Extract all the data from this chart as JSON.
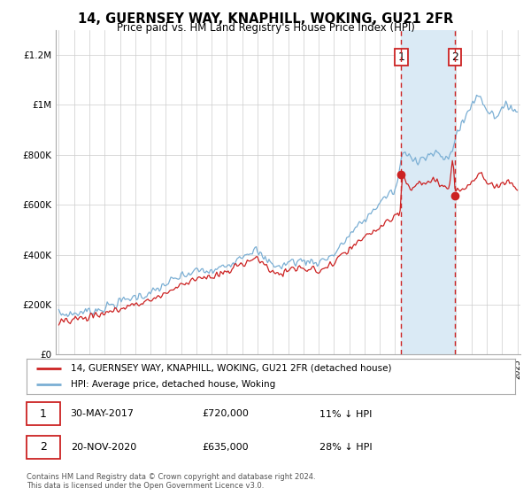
{
  "title": "14, GUERNSEY WAY, KNAPHILL, WOKING, GU21 2FR",
  "subtitle": "Price paid vs. HM Land Registry's House Price Index (HPI)",
  "ylim": [
    0,
    1300000
  ],
  "yticks": [
    0,
    200000,
    400000,
    600000,
    800000,
    1000000,
    1200000
  ],
  "ytick_labels": [
    "£0",
    "£200K",
    "£400K",
    "£600K",
    "£800K",
    "£1M",
    "£1.2M"
  ],
  "year_start": 1995,
  "year_end": 2025,
  "hpi_color": "#7bafd4",
  "price_color": "#cc2222",
  "point1_year": 2017.41,
  "point1_value": 720000,
  "point2_year": 2020.89,
  "point2_value": 635000,
  "shaded_color": "#daeaf5",
  "legend_label_price": "14, GUERNSEY WAY, KNAPHILL, WOKING, GU21 2FR (detached house)",
  "legend_label_hpi": "HPI: Average price, detached house, Woking",
  "annotation1_date": "30-MAY-2017",
  "annotation1_value": "£720,000",
  "annotation1_pct": "11% ↓ HPI",
  "annotation2_date": "20-NOV-2020",
  "annotation2_value": "£635,000",
  "annotation2_pct": "28% ↓ HPI",
  "footer": "Contains HM Land Registry data © Crown copyright and database right 2024.\nThis data is licensed under the Open Government Licence v3.0.",
  "background_color": "#ffffff",
  "grid_color": "#cccccc"
}
